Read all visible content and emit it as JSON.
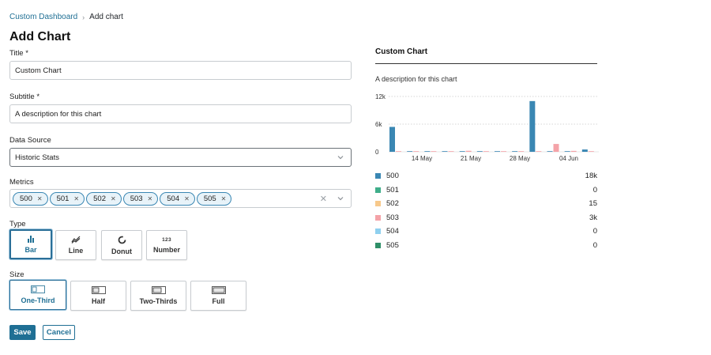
{
  "breadcrumb": {
    "root": "Custom Dashboard",
    "current": "Add chart"
  },
  "page_title": "Add Chart",
  "form": {
    "title_label": "Title *",
    "title_value": "Custom Chart",
    "subtitle_label": "Subtitle *",
    "subtitle_value": "A description for this chart",
    "source_label": "Data Source",
    "source_value": "Historic Stats",
    "metrics_label": "Metrics",
    "metrics": [
      "500",
      "501",
      "502",
      "503",
      "504",
      "505"
    ],
    "type_label": "Type",
    "types": [
      {
        "label": "Bar",
        "icon": "bar-chart-icon",
        "selected": true
      },
      {
        "label": "Line",
        "icon": "line-chart-icon",
        "selected": false
      },
      {
        "label": "Donut",
        "icon": "donut-chart-icon",
        "selected": false
      },
      {
        "label": "Number",
        "icon": "number-icon",
        "selected": false,
        "icon_text": "123"
      }
    ],
    "size_label": "Size",
    "sizes": [
      {
        "label": "One-Third",
        "icon": "one-third-layout-icon",
        "selected": true
      },
      {
        "label": "Half",
        "icon": "half-layout-icon",
        "selected": false
      },
      {
        "label": "Two-Thirds",
        "icon": "two-thirds-layout-icon",
        "selected": false
      },
      {
        "label": "Full",
        "icon": "full-layout-icon",
        "selected": false
      }
    ],
    "save_label": "Save",
    "cancel_label": "Cancel"
  },
  "preview": {
    "title": "Custom Chart",
    "subtitle": "A description for this chart",
    "legend": [
      {
        "name": "500",
        "value": "18k",
        "color": "#3a87b3"
      },
      {
        "name": "501",
        "value": "0",
        "color": "#3fae8a"
      },
      {
        "name": "502",
        "value": "15",
        "color": "#f7c98b"
      },
      {
        "name": "503",
        "value": "3k",
        "color": "#f4a3a8"
      },
      {
        "name": "504",
        "value": "0",
        "color": "#8fd0ef"
      },
      {
        "name": "505",
        "value": "0",
        "color": "#2f8f68"
      }
    ]
  },
  "chart_data": {
    "type": "bar",
    "y_ticks": [
      "12k",
      "6k",
      "0"
    ],
    "ylim": [
      0,
      12000
    ],
    "x_ticks": [
      "14 May",
      "21 May",
      "28 May",
      "04 Jun"
    ],
    "grid": true,
    "groups": [
      {
        "500": 5400,
        "503": 0
      },
      {
        "500": 0,
        "503": 0
      },
      {
        "500": 60,
        "503": 100
      },
      {
        "500": 50,
        "503": 80
      },
      {
        "500": 120,
        "503": 220
      },
      {
        "500": 40,
        "503": 40
      },
      {
        "500": 30,
        "503": 30
      },
      {
        "500": 60,
        "503": 50
      },
      {
        "500": 11000,
        "503": 0
      },
      {
        "500": 80,
        "503": 1700
      },
      {
        "500": 40,
        "503": 200
      },
      {
        "500": 500,
        "503": 0
      }
    ]
  }
}
